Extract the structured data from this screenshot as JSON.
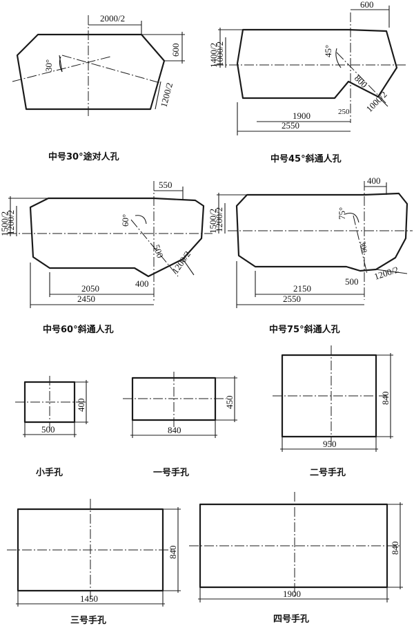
{
  "captions": {
    "f1": "中号30°途对人孔",
    "f2": "中号45°斜通人孔",
    "f3": "中号60°斜通人孔",
    "f4": "中号75°斜通人孔",
    "f5": "小手孔",
    "f6": "一号手孔",
    "f7": "二号手孔",
    "f8": "三号手孔",
    "f9": "四号手孔"
  },
  "dims": {
    "f1": {
      "width_half": "2000/2",
      "right": "600",
      "diag": "1200/2",
      "angle": "30°"
    },
    "f2": {
      "top": "600",
      "left_outer": "1400/2",
      "left_inner": "1000/2",
      "angle": "45°",
      "diag_len": "800",
      "diag_width": "1000/2",
      "step": "250",
      "len_inner": "1900",
      "len_outer": "2550"
    },
    "f3": {
      "top": "550",
      "left_outer": "1500/2",
      "left_inner": "1200/2",
      "angle": "60°",
      "diag_len": "500",
      "diag_width": "1200/2",
      "step": "400",
      "len_inner": "2050",
      "len_outer": "2450"
    },
    "f4": {
      "top": "400",
      "left_outer": "1500/2",
      "left_inner": "1200/2",
      "angle": "75°",
      "diag_len": "300",
      "diag_width": "1200/2",
      "step": "500",
      "len_inner": "2150",
      "len_outer": "2550"
    },
    "f5": {
      "w": "500",
      "h": "400"
    },
    "f6": {
      "w": "840",
      "h": "450"
    },
    "f7": {
      "w": "950",
      "h": "840"
    },
    "f8": {
      "w": "1450",
      "h": "840"
    },
    "f9": {
      "w": "1900",
      "h": "840"
    }
  }
}
